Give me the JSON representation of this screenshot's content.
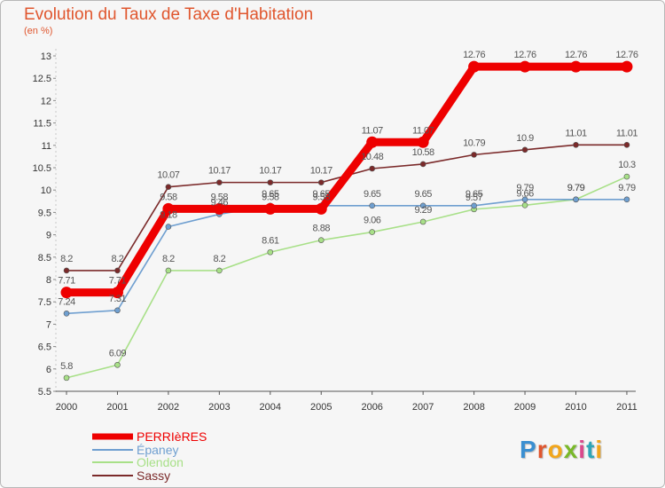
{
  "header": {
    "title": "Evolution du Taux de Taxe d'Habitation",
    "subtitle": "(en %)"
  },
  "logo": {
    "text": "Proxiti",
    "letter_colors": [
      "#3a8fd1",
      "#e0562e",
      "#f2a61b",
      "#79b829",
      "#d94a8c",
      "#2fa6b7",
      "#f2a61b"
    ]
  },
  "chart_data": {
    "type": "line",
    "title": "Evolution du Taux de Taxe d'Habitation",
    "subtitle": "(en %)",
    "xlabel": "",
    "ylabel": "",
    "x": [
      "2000",
      "2001",
      "2002",
      "2003",
      "2004",
      "2005",
      "2006",
      "2007",
      "2008",
      "2009",
      "2010",
      "2011"
    ],
    "ylim": [
      5.5,
      13
    ],
    "yticks": [
      "5.5",
      "6",
      "6.5",
      "7",
      "7.5",
      "8",
      "8.5",
      "9",
      "9.5",
      "10",
      "10.5",
      "11",
      "11.5",
      "12",
      "12.5",
      "13"
    ],
    "grid": false,
    "legend_position": "bottom-left",
    "series": [
      {
        "name": "PERRIèRES",
        "color": "#ee0000",
        "values": [
          7.71,
          7.71,
          9.58,
          9.58,
          9.58,
          9.58,
          11.07,
          11.07,
          12.76,
          12.76,
          12.76,
          12.76
        ],
        "labels": [
          "7.71",
          "7.71",
          "9.58",
          "9.58",
          "9.58",
          "9.58",
          "11.07",
          "11.07",
          "12.76",
          "12.76",
          "12.76",
          "12.76"
        ]
      },
      {
        "name": "Épaney",
        "color": "#6f9fd0",
        "values": [
          7.24,
          7.31,
          9.18,
          9.46,
          9.65,
          9.65,
          9.65,
          9.65,
          9.65,
          9.79,
          9.79,
          9.79
        ],
        "labels": [
          "7.24",
          "7.31",
          "9.18",
          "9.46",
          "9.65",
          "9.65",
          "9.65",
          "9.65",
          "9.65",
          "9.79",
          "9.79",
          "9.79"
        ]
      },
      {
        "name": "Olendon",
        "color": "#a8e088",
        "values": [
          5.8,
          6.09,
          8.2,
          8.2,
          8.61,
          8.88,
          9.06,
          9.29,
          9.57,
          9.66,
          9.79,
          10.3
        ],
        "labels": [
          "5.8",
          "6.09",
          "8.2",
          "8.2",
          "8.61",
          "8.88",
          "9.06",
          "9.29",
          "9.57",
          "9.66",
          "9.79",
          "10.3"
        ]
      },
      {
        "name": "Sassy",
        "color": "#7b2a2a",
        "values": [
          8.2,
          8.2,
          10.07,
          10.17,
          10.17,
          10.17,
          10.48,
          10.58,
          10.79,
          10.9,
          11.01,
          11.01
        ],
        "labels": [
          "8.2",
          "8.2",
          "10.07",
          "10.17",
          "10.17",
          "10.17",
          "10.48",
          "10.58",
          "10.79",
          "10.9",
          "11.01",
          "11.01"
        ]
      }
    ]
  }
}
